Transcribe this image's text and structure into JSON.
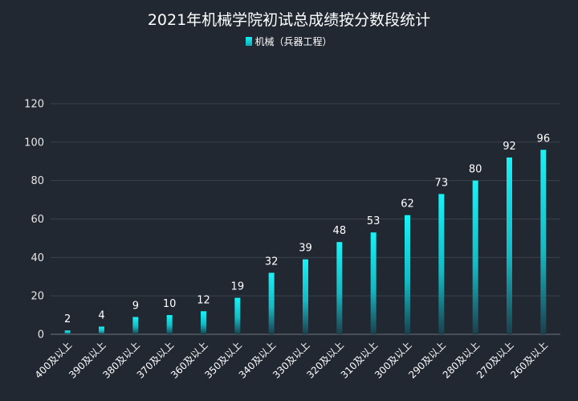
{
  "chart_data": {
    "type": "bar",
    "title": "2021年机械学院初试总成绩按分数段统计",
    "legend": {
      "position": "top-center"
    },
    "categories": [
      "400及以上",
      "390及以上",
      "380及以上",
      "370及以上",
      "360及以上",
      "350及以上",
      "340及以上",
      "330及以上",
      "320及以上",
      "310及以上",
      "300及以上",
      "290及以上",
      "280及以上",
      "270及以上",
      "260及以上"
    ],
    "series": [
      {
        "name": "机械（兵器工程）",
        "values": [
          2,
          4,
          9,
          10,
          12,
          19,
          32,
          39,
          48,
          53,
          62,
          73,
          80,
          92,
          96
        ]
      }
    ],
    "ylim": [
      0,
      120
    ],
    "yticks": [
      0,
      20,
      40,
      60,
      80,
      100,
      120
    ],
    "grid": true,
    "colors": {
      "bar_top": "#19f2f6",
      "bar_bottom": "#1b3f4c",
      "background": "#212831"
    }
  }
}
